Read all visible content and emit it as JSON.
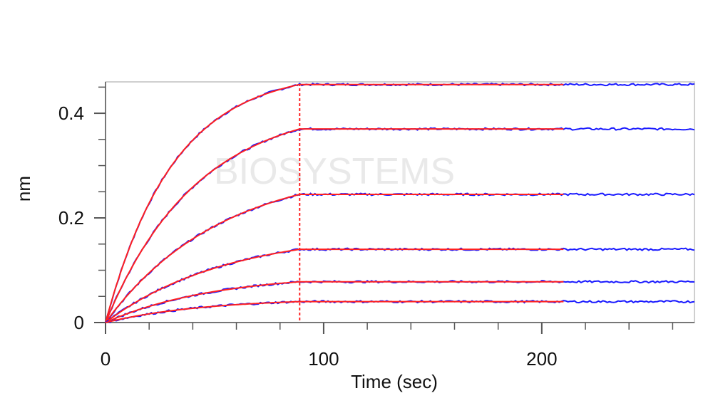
{
  "chart_data": {
    "type": "line",
    "xlabel": "Time (sec)",
    "ylabel": "nm",
    "xlim": [
      0,
      270
    ],
    "ylim": [
      0,
      0.46
    ],
    "x_ticks": [
      0,
      100,
      200
    ],
    "y_ticks": [
      0,
      0.2,
      0.4
    ],
    "x_minor_step": 20,
    "y_minor_step": 0.05,
    "watermark": "BIOSYSTEMS",
    "association_end": 89,
    "fit_end": 210,
    "data_end": 270,
    "curves": [
      {
        "plateau": 0.455,
        "k": 0.032
      },
      {
        "plateau": 0.37,
        "k": 0.024
      },
      {
        "plateau": 0.245,
        "k": 0.019
      },
      {
        "plateau": 0.14,
        "k": 0.018
      },
      {
        "plateau": 0.078,
        "k": 0.02
      },
      {
        "plateau": 0.04,
        "k": 0.022
      }
    ],
    "colors": {
      "data": "#1a1aff",
      "fit": "#ff2020",
      "marker_line": "#ff2020",
      "axis": "#555555",
      "frame": "#bfbfbf"
    }
  }
}
